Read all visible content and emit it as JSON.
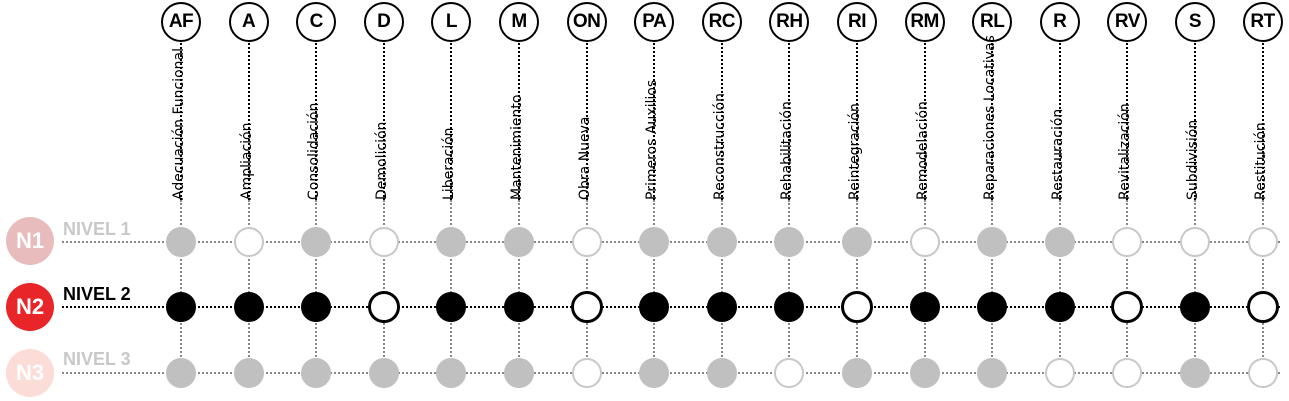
{
  "interventions": [
    {
      "code": "AF",
      "name": "Adecuación Funcional"
    },
    {
      "code": "A",
      "name": "Ampliación"
    },
    {
      "code": "C",
      "name": "Consolidación"
    },
    {
      "code": "D",
      "name": "Demolición"
    },
    {
      "code": "L",
      "name": "Liberación"
    },
    {
      "code": "M",
      "name": "Mantenimiento"
    },
    {
      "code": "ON",
      "name": "Obra Nueva"
    },
    {
      "code": "PA",
      "name": "Primeros Auxilios"
    },
    {
      "code": "RC",
      "name": "Reconstrucción"
    },
    {
      "code": "RH",
      "name": "Rehabilitación"
    },
    {
      "code": "RI",
      "name": "Reintegración"
    },
    {
      "code": "RM",
      "name": "Remodelación"
    },
    {
      "code": "RL",
      "name": "Reparaciones Locativas"
    },
    {
      "code": "R",
      "name": "Restauración"
    },
    {
      "code": "RV",
      "name": "Revitalización"
    },
    {
      "code": "S",
      "name": "Subdivisión"
    },
    {
      "code": "RT",
      "name": "Restitución"
    }
  ],
  "levels": [
    {
      "badge": "N1",
      "label": "NIVEL 1",
      "active": false,
      "badge_color": "#e8bcbc",
      "label_color": "#c8c8c8",
      "allowed": [
        true,
        false,
        true,
        false,
        true,
        true,
        false,
        true,
        true,
        true,
        true,
        false,
        true,
        true,
        false,
        false,
        false
      ]
    },
    {
      "badge": "N2",
      "label": "NIVEL 2",
      "active": true,
      "badge_color": "#e8262a",
      "label_color": "#000000",
      "allowed": [
        true,
        true,
        true,
        false,
        true,
        true,
        false,
        true,
        true,
        true,
        false,
        true,
        true,
        true,
        false,
        true,
        false
      ]
    },
    {
      "badge": "N3",
      "label": "NIVEL 3",
      "active": false,
      "badge_color": "#fbdcd7",
      "label_color": "#c8c8c8",
      "allowed": [
        true,
        true,
        true,
        true,
        true,
        true,
        false,
        true,
        true,
        false,
        true,
        true,
        true,
        false,
        false,
        true,
        false
      ]
    }
  ]
}
